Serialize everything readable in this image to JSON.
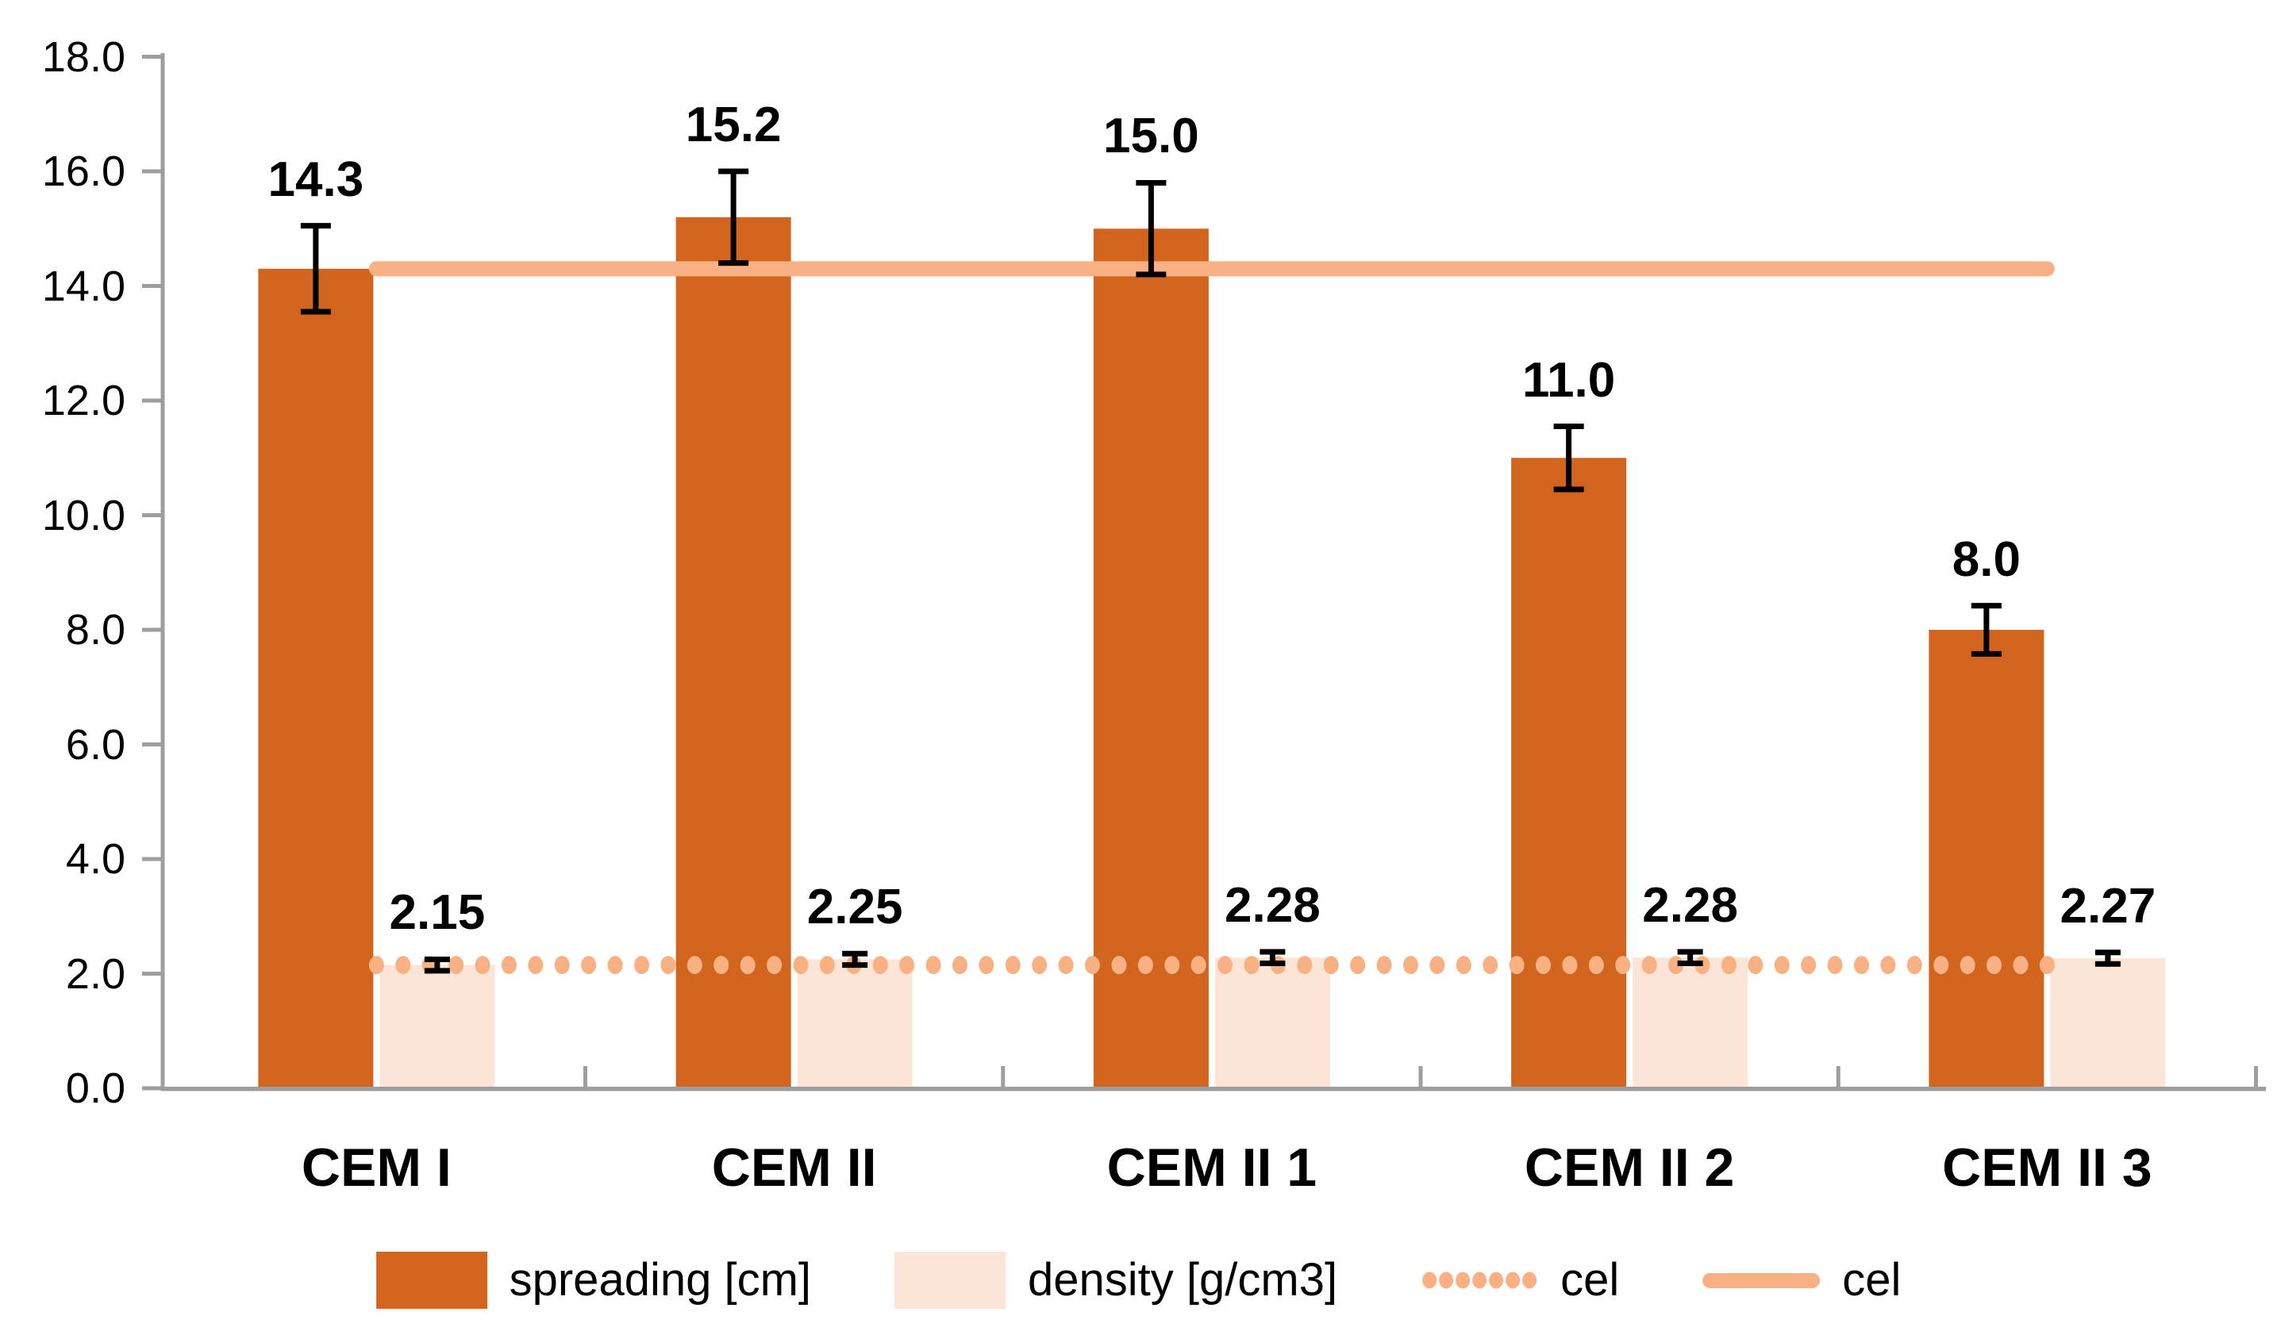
{
  "chart_data": {
    "type": "bar",
    "title": "",
    "categories": [
      "CEM I",
      "CEM II",
      "CEM II 1",
      "CEM II 2",
      "CEM II 3"
    ],
    "series": [
      {
        "name": "spreading [cm]",
        "type": "bar",
        "color": "#D2651D",
        "values": [
          14.3,
          15.2,
          15.0,
          11.0,
          8.0
        ],
        "labels": [
          "14.3",
          "15.2",
          "15.0",
          "11.0",
          "8.0"
        ],
        "error": [
          0.75,
          0.8,
          0.8,
          0.55,
          0.42
        ]
      },
      {
        "name": "density [g/cm3]",
        "type": "bar",
        "color": "#FCE4D6",
        "values": [
          2.15,
          2.25,
          2.28,
          2.28,
          2.27
        ],
        "labels": [
          "2.15",
          "2.25",
          "2.28",
          "2.28",
          "2.27"
        ],
        "error": [
          0.1,
          0.1,
          0.1,
          0.1,
          0.1
        ]
      },
      {
        "name": "cel",
        "type": "line-dotted",
        "color": "#F9B183",
        "value": 2.15
      },
      {
        "name": "cel",
        "type": "line-solid",
        "color": "#F9B183",
        "value": 14.3
      }
    ],
    "y_axis": {
      "min": 0,
      "max": 18,
      "step": 2,
      "tick_labels": [
        "18.0",
        "16.0",
        "14.0",
        "12.0",
        "10.0",
        "8.0",
        "6.0",
        "4.0",
        "2.0",
        "0.0"
      ]
    },
    "x_axis": {
      "label": ""
    },
    "grid": false,
    "legend_position": "bottom",
    "axis_color": "#9E9E9E",
    "error_bar_color": "#000000",
    "legend": [
      {
        "label": "spreading [cm]",
        "swatch": "bar",
        "color": "#D2651D"
      },
      {
        "label": "density [g/cm3]",
        "swatch": "bar",
        "color": "#FCE4D6"
      },
      {
        "label": "cel",
        "swatch": "dotted-line",
        "color": "#F9B183"
      },
      {
        "label": "cel",
        "swatch": "solid-line",
        "color": "#F9B183"
      }
    ]
  }
}
